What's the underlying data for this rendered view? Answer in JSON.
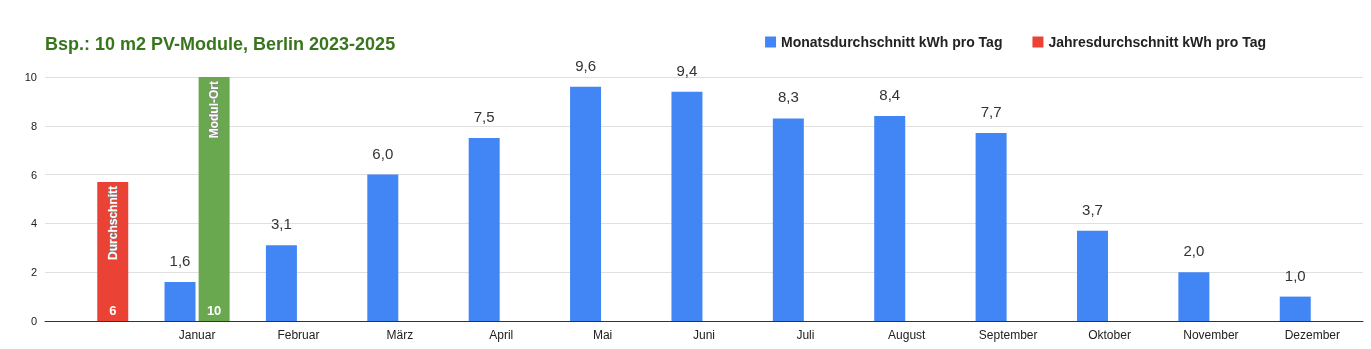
{
  "chart_data": {
    "type": "bar",
    "title": "Bsp.: 10 m2 PV-Module, Berlin 2023-2025",
    "categories": [
      null,
      "Januar",
      "Februar",
      "März",
      "April",
      "Mai",
      "Juni",
      "Juli",
      "August",
      "September",
      "Oktober",
      "November",
      "Dezember"
    ],
    "series": [
      {
        "name": "Monatsdurchschnitt kWh pro Tag",
        "color": "#4285f4",
        "values": [
          null,
          1.6,
          3.1,
          6.0,
          7.5,
          9.6,
          9.4,
          8.3,
          8.4,
          7.7,
          3.7,
          2.0,
          1.0
        ],
        "value_labels": [
          null,
          "1,6",
          "3,1",
          "6,0",
          "7,5",
          "9,6",
          "9,4",
          "8,3",
          "8,4",
          "7,7",
          "3,7",
          "2,0",
          "1,0"
        ]
      },
      {
        "name": "Jahresdurchschnitt kWh pro Tag",
        "color": "#ea4335",
        "values": [
          5.7,
          null,
          null,
          null,
          null,
          null,
          null,
          null,
          null,
          null,
          null,
          null,
          null
        ],
        "value_labels": [
          "6",
          null,
          null,
          null,
          null,
          null,
          null,
          null,
          null,
          null,
          null,
          null,
          null
        ]
      },
      {
        "color": "#6aa84f",
        "values": [
          null,
          10,
          null,
          null,
          null,
          null,
          null,
          null,
          null,
          null,
          null,
          null,
          null
        ],
        "value_labels": [
          null,
          "10",
          null,
          null,
          null,
          null,
          null,
          null,
          null,
          null,
          null,
          null,
          null
        ]
      }
    ],
    "annotations": [
      "Durchschnitt",
      "Modul-Ort"
    ],
    "ylim": [
      0,
      10
    ],
    "yticks": [
      0,
      2,
      4,
      6,
      8,
      10
    ],
    "grid": "y",
    "legend": "top right"
  }
}
